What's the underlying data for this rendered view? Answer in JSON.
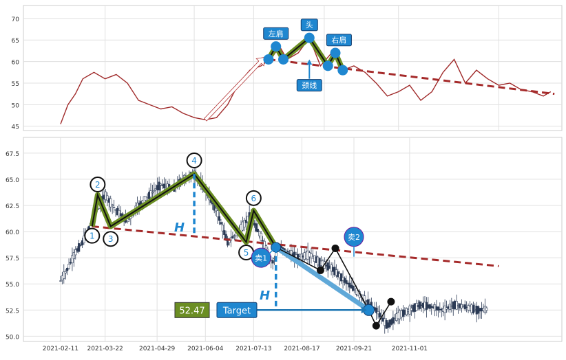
{
  "chart_data": [
    {
      "type": "line",
      "title": "",
      "xlabel": "",
      "ylabel": "",
      "ylim": [
        44,
        73
      ],
      "yticks": [
        45,
        50,
        55,
        60,
        65,
        70
      ],
      "grid": true,
      "series": [
        {
          "values": [
            [
              2021.1,
              45.5
            ],
            [
              2021.12,
              50.0
            ],
            [
              2021.14,
              52.5
            ],
            [
              2021.16,
              56.0
            ],
            [
              2021.19,
              57.5
            ],
            [
              2021.22,
              56.0
            ],
            [
              2021.25,
              57.0
            ],
            [
              2021.28,
              55.0
            ],
            [
              2021.31,
              51.0
            ],
            [
              2021.34,
              50.0
            ],
            [
              2021.37,
              49.0
            ],
            [
              2021.4,
              49.5
            ],
            [
              2021.43,
              48.0
            ],
            [
              2021.46,
              47.0
            ],
            [
              2021.49,
              46.5
            ],
            [
              2021.52,
              47.0
            ],
            [
              2021.55,
              50.0
            ],
            [
              2021.58,
              55.0
            ],
            [
              2021.61,
              58.0
            ],
            [
              2021.64,
              59.0
            ],
            [
              2021.67,
              61.0
            ],
            [
              2021.69,
              63.5
            ],
            [
              2021.71,
              60.5
            ],
            [
              2021.74,
              62.0
            ],
            [
              2021.77,
              65.5
            ],
            [
              2021.8,
              59.0
            ],
            [
              2021.83,
              62.0
            ],
            [
              2021.86,
              58.0
            ],
            [
              2021.89,
              59.0
            ],
            [
              2021.92,
              57.5
            ],
            [
              2021.95,
              55.0
            ],
            [
              2021.98,
              52.0
            ],
            [
              2022.01,
              53.0
            ],
            [
              2022.04,
              54.5
            ],
            [
              2022.07,
              51.0
            ],
            [
              2022.1,
              53.0
            ],
            [
              2022.13,
              57.5
            ],
            [
              2022.16,
              60.5
            ],
            [
              2022.19,
              55.0
            ],
            [
              2022.22,
              58.0
            ],
            [
              2022.25,
              56.0
            ],
            [
              2022.28,
              54.5
            ],
            [
              2022.31,
              55.0
            ],
            [
              2022.34,
              53.5
            ],
            [
              2022.37,
              53.0
            ],
            [
              2022.4,
              52.0
            ],
            [
              2022.42,
              53.0
            ]
          ]
        }
      ],
      "annotations": {
        "pattern_points": [
          [
            2021.66,
            60.5
          ],
          [
            2021.68,
            63.5
          ],
          [
            2021.7,
            60.5
          ],
          [
            2021.77,
            65.5
          ],
          [
            2021.82,
            59.0
          ],
          [
            2021.84,
            62.0
          ],
          [
            2021.86,
            58.0
          ]
        ],
        "neckline": [
          [
            2021.66,
            60.5
          ],
          [
            2022.43,
            52.5
          ]
        ],
        "breakout_arrow": [
          [
            2021.49,
            46.5
          ],
          [
            2021.65,
            61.0
          ]
        ],
        "labels": [
          {
            "text": "左肩",
            "x": 2021.68,
            "y": 66.5
          },
          {
            "text": "头",
            "x": 2021.77,
            "y": 68.5
          },
          {
            "text": "右肩",
            "x": 2021.85,
            "y": 65.0
          },
          {
            "text": "颈线",
            "x": 2021.77,
            "y": 54.5
          }
        ]
      },
      "colors": {
        "line": "#a02a2a",
        "pattern": "#6b8e23",
        "neckline": "#a52a2a",
        "marker": "#1f87d0",
        "label_bg": "#1f87d0"
      }
    },
    {
      "type": "candlestick",
      "title": "",
      "xlabel": "",
      "ylabel": "",
      "xtick_labels": [
        "2021-02-11",
        "2021-03-22",
        "2021-04-29",
        "2021-06-04",
        "2021-07-13",
        "2021-08-17",
        "2021-09-21",
        "2021-11-01"
      ],
      "ylim": [
        49.5,
        69.0
      ],
      "yticks": [
        50.0,
        52.5,
        55.0,
        57.5,
        60.0,
        62.5,
        65.0,
        67.5
      ],
      "grid": true,
      "closes": [
        [
          2021.1,
          55.3
        ],
        [
          2021.12,
          56.5
        ],
        [
          2021.14,
          58.0
        ],
        [
          2021.16,
          59.0
        ],
        [
          2021.19,
          61.5
        ],
        [
          2021.22,
          63.5
        ],
        [
          2021.25,
          62.0
        ],
        [
          2021.28,
          61.0
        ],
        [
          2021.31,
          62.5
        ],
        [
          2021.34,
          63.5
        ],
        [
          2021.37,
          64.5
        ],
        [
          2021.4,
          64.0
        ],
        [
          2021.43,
          65.0
        ],
        [
          2021.46,
          65.5
        ],
        [
          2021.49,
          64.0
        ],
        [
          2021.52,
          62.0
        ],
        [
          2021.55,
          59.0
        ],
        [
          2021.58,
          60.0
        ],
        [
          2021.61,
          61.5
        ],
        [
          2021.64,
          59.5
        ],
        [
          2021.67,
          57.0
        ],
        [
          2021.69,
          58.5
        ],
        [
          2021.71,
          58.0
        ],
        [
          2021.74,
          57.5
        ],
        [
          2021.77,
          57.8
        ],
        [
          2021.8,
          57.0
        ],
        [
          2021.83,
          56.5
        ],
        [
          2021.86,
          55.5
        ],
        [
          2021.89,
          54.5
        ],
        [
          2021.92,
          53.5
        ],
        [
          2021.95,
          52.5
        ],
        [
          2021.98,
          51.0
        ],
        [
          2022.01,
          52.0
        ],
        [
          2022.04,
          52.5
        ],
        [
          2022.07,
          53.0
        ],
        [
          2022.1,
          52.8
        ],
        [
          2022.13,
          52.5
        ],
        [
          2022.16,
          53.0
        ],
        [
          2022.19,
          52.8
        ],
        [
          2022.22,
          52.5
        ],
        [
          2022.25,
          52.6
        ]
      ],
      "pattern_points": [
        {
          "label": "1",
          "x": 2021.185,
          "y": 60.5
        },
        {
          "label": "2",
          "x": 2021.2,
          "y": 63.5
        },
        {
          "label": "3",
          "x": 2021.235,
          "y": 60.5
        },
        {
          "label": "4",
          "x": 2021.46,
          "y": 65.5
        },
        {
          "label": "5",
          "x": 2021.6,
          "y": 59.0
        },
        {
          "label": "6",
          "x": 2021.62,
          "y": 62.0
        },
        {
          "label": "",
          "x": 2021.68,
          "y": 58.5
        }
      ],
      "neckline": [
        [
          2021.185,
          60.5
        ],
        [
          2022.28,
          56.7
        ]
      ],
      "trade_line": [
        [
          2021.68,
          58.5
        ],
        [
          2021.93,
          52.5
        ]
      ],
      "trade_markers": [
        {
          "text": "卖1",
          "x": 2021.64,
          "y": 57.5
        },
        {
          "text": "卖2",
          "x": 2021.89,
          "y": 59.5
        }
      ],
      "swing_points": [
        [
          2021.8,
          56.3
        ],
        [
          2021.84,
          58.4
        ],
        [
          2021.93,
          52.5
        ],
        [
          2021.95,
          51.0
        ],
        [
          2021.99,
          53.3
        ]
      ],
      "target": {
        "label": "Target",
        "value": "52.47"
      },
      "height_labels": [
        "H",
        "H"
      ],
      "colors": {
        "candle_up": "#ffffff",
        "candle_down": "#2b3a55",
        "pattern": "#6b8e23",
        "neckline": "#a52a2a",
        "target": "#1f77b4",
        "badge": "#6b8e23",
        "label_bg": "#1f87d0"
      }
    }
  ]
}
